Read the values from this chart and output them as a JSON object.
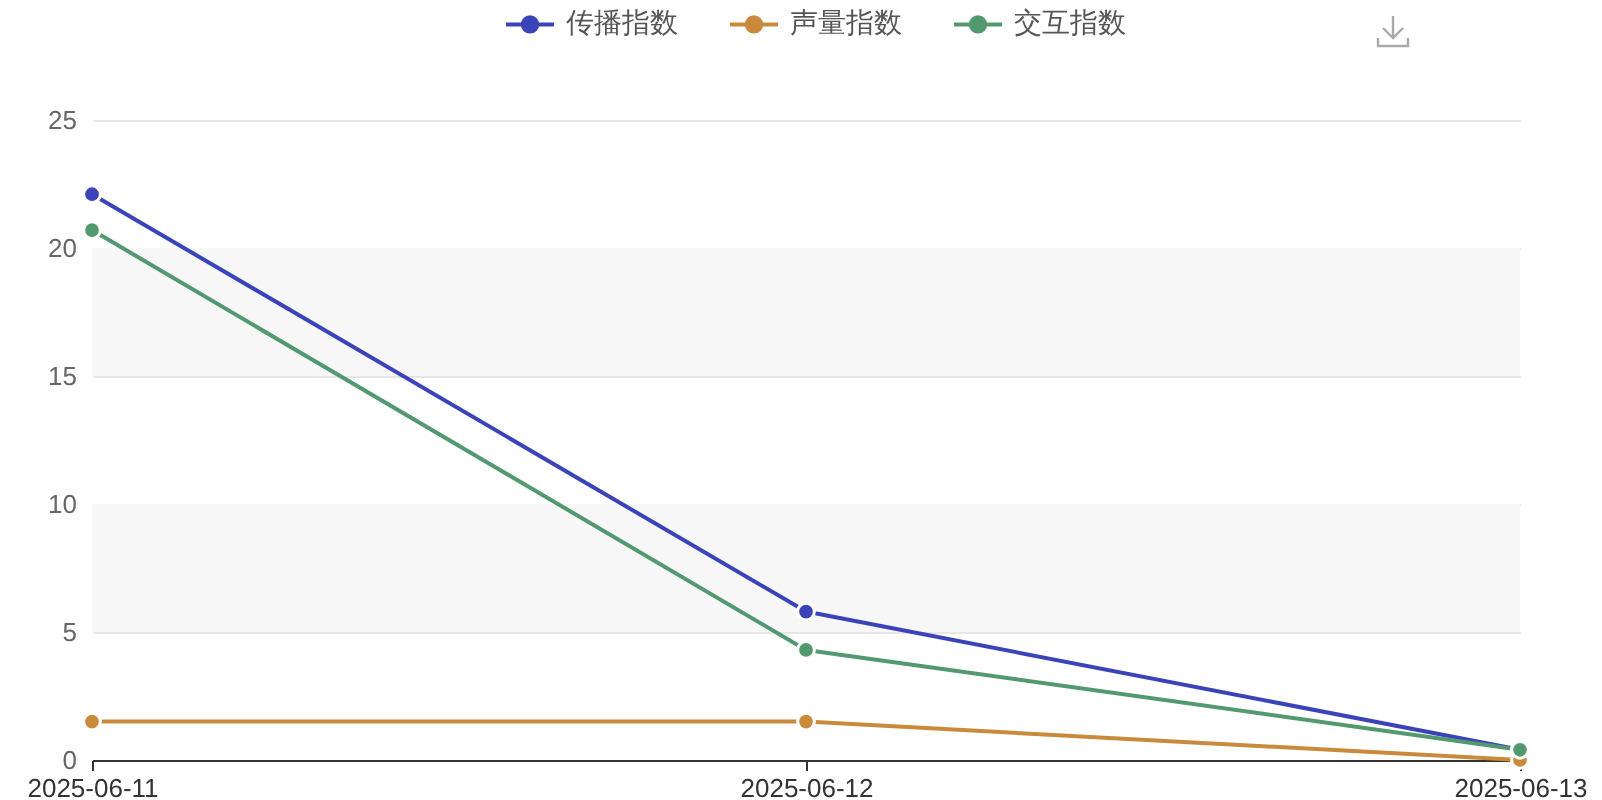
{
  "chart_data": {
    "type": "line",
    "categories": [
      "2025-06-11",
      "2025-06-12",
      "2025-06-13"
    ],
    "series": [
      {
        "name": "传播指数",
        "color": "#3a44b8",
        "values": [
          22.1,
          5.8,
          0.4
        ]
      },
      {
        "name": "声量指数",
        "color": "#c98a3c",
        "values": [
          1.5,
          1.5,
          0
        ]
      },
      {
        "name": "交互指数",
        "color": "#52996f",
        "values": [
          20.7,
          4.3,
          0.4
        ]
      }
    ],
    "ylim": [
      0,
      25
    ],
    "yticks": [
      0,
      5,
      10,
      15,
      20,
      25
    ],
    "grid": "y",
    "legend": "top",
    "marker": "circle",
    "line_style": "solid",
    "bands": [
      {
        "axis": "y",
        "from": 5,
        "to": 10,
        "color": "#f7f7f7"
      },
      {
        "axis": "y",
        "from": 15,
        "to": 20,
        "color": "#f7f7f7"
      }
    ]
  }
}
